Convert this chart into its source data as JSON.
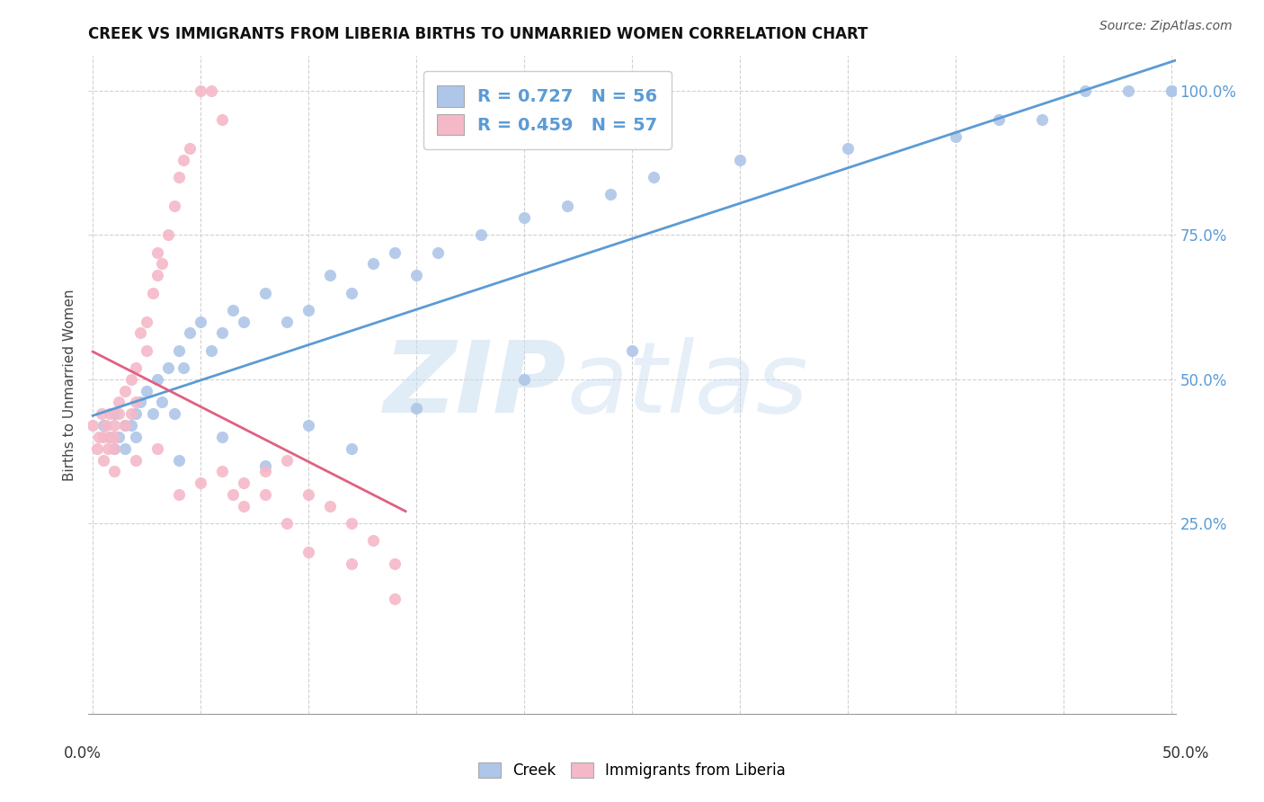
{
  "title": "CREEK VS IMMIGRANTS FROM LIBERIA BIRTHS TO UNMARRIED WOMEN CORRELATION CHART",
  "source": "Source: ZipAtlas.com",
  "ylabel": "Births to Unmarried Women",
  "creek_color": "#aec6e8",
  "liberia_color": "#f5b8c8",
  "creek_line_color": "#5b9bd5",
  "liberia_line_color": "#e06080",
  "creek_R": 0.727,
  "creek_N": 56,
  "liberia_R": 0.459,
  "liberia_N": 57,
  "background_color": "#ffffff",
  "xlim": [
    -0.002,
    0.502
  ],
  "ylim": [
    -0.08,
    1.06
  ],
  "ytick_values": [
    0.25,
    0.5,
    0.75,
    1.0
  ],
  "ytick_labels": [
    "25.0%",
    "50.0%",
    "75.0%",
    "100.0%"
  ],
  "creek_x": [
    0.005,
    0.008,
    0.01,
    0.01,
    0.012,
    0.015,
    0.015,
    0.018,
    0.02,
    0.02,
    0.022,
    0.025,
    0.028,
    0.03,
    0.032,
    0.035,
    0.038,
    0.04,
    0.042,
    0.045,
    0.05,
    0.055,
    0.06,
    0.065,
    0.07,
    0.08,
    0.09,
    0.1,
    0.11,
    0.12,
    0.13,
    0.14,
    0.15,
    0.16,
    0.18,
    0.2,
    0.22,
    0.24,
    0.26,
    0.3,
    0.35,
    0.4,
    0.42,
    0.44,
    0.46,
    0.48,
    0.5,
    0.5,
    0.04,
    0.06,
    0.08,
    0.1,
    0.12,
    0.15,
    0.2,
    0.25
  ],
  "creek_y": [
    0.42,
    0.4,
    0.38,
    0.44,
    0.4,
    0.42,
    0.38,
    0.42,
    0.44,
    0.4,
    0.46,
    0.48,
    0.44,
    0.5,
    0.46,
    0.52,
    0.44,
    0.55,
    0.52,
    0.58,
    0.6,
    0.55,
    0.58,
    0.62,
    0.6,
    0.65,
    0.6,
    0.62,
    0.68,
    0.65,
    0.7,
    0.72,
    0.68,
    0.72,
    0.75,
    0.78,
    0.8,
    0.82,
    0.85,
    0.88,
    0.9,
    0.92,
    0.95,
    0.95,
    1.0,
    1.0,
    1.0,
    1.0,
    0.36,
    0.4,
    0.35,
    0.42,
    0.38,
    0.45,
    0.5,
    0.55
  ],
  "liberia_x": [
    0.0,
    0.002,
    0.003,
    0.004,
    0.005,
    0.005,
    0.006,
    0.007,
    0.008,
    0.008,
    0.01,
    0.01,
    0.01,
    0.012,
    0.012,
    0.015,
    0.015,
    0.018,
    0.018,
    0.02,
    0.02,
    0.022,
    0.025,
    0.025,
    0.028,
    0.03,
    0.03,
    0.032,
    0.035,
    0.038,
    0.04,
    0.042,
    0.045,
    0.05,
    0.055,
    0.06,
    0.065,
    0.07,
    0.08,
    0.09,
    0.1,
    0.11,
    0.12,
    0.13,
    0.14,
    0.01,
    0.02,
    0.03,
    0.04,
    0.05,
    0.06,
    0.07,
    0.08,
    0.09,
    0.1,
    0.12,
    0.14
  ],
  "liberia_y": [
    0.42,
    0.38,
    0.4,
    0.44,
    0.36,
    0.4,
    0.42,
    0.38,
    0.44,
    0.4,
    0.38,
    0.4,
    0.42,
    0.44,
    0.46,
    0.48,
    0.42,
    0.5,
    0.44,
    0.52,
    0.46,
    0.58,
    0.55,
    0.6,
    0.65,
    0.68,
    0.72,
    0.7,
    0.75,
    0.8,
    0.85,
    0.88,
    0.9,
    1.0,
    1.0,
    0.95,
    0.3,
    0.32,
    0.34,
    0.36,
    0.3,
    0.28,
    0.25,
    0.22,
    0.18,
    0.34,
    0.36,
    0.38,
    0.3,
    0.32,
    0.34,
    0.28,
    0.3,
    0.25,
    0.2,
    0.18,
    0.12
  ]
}
